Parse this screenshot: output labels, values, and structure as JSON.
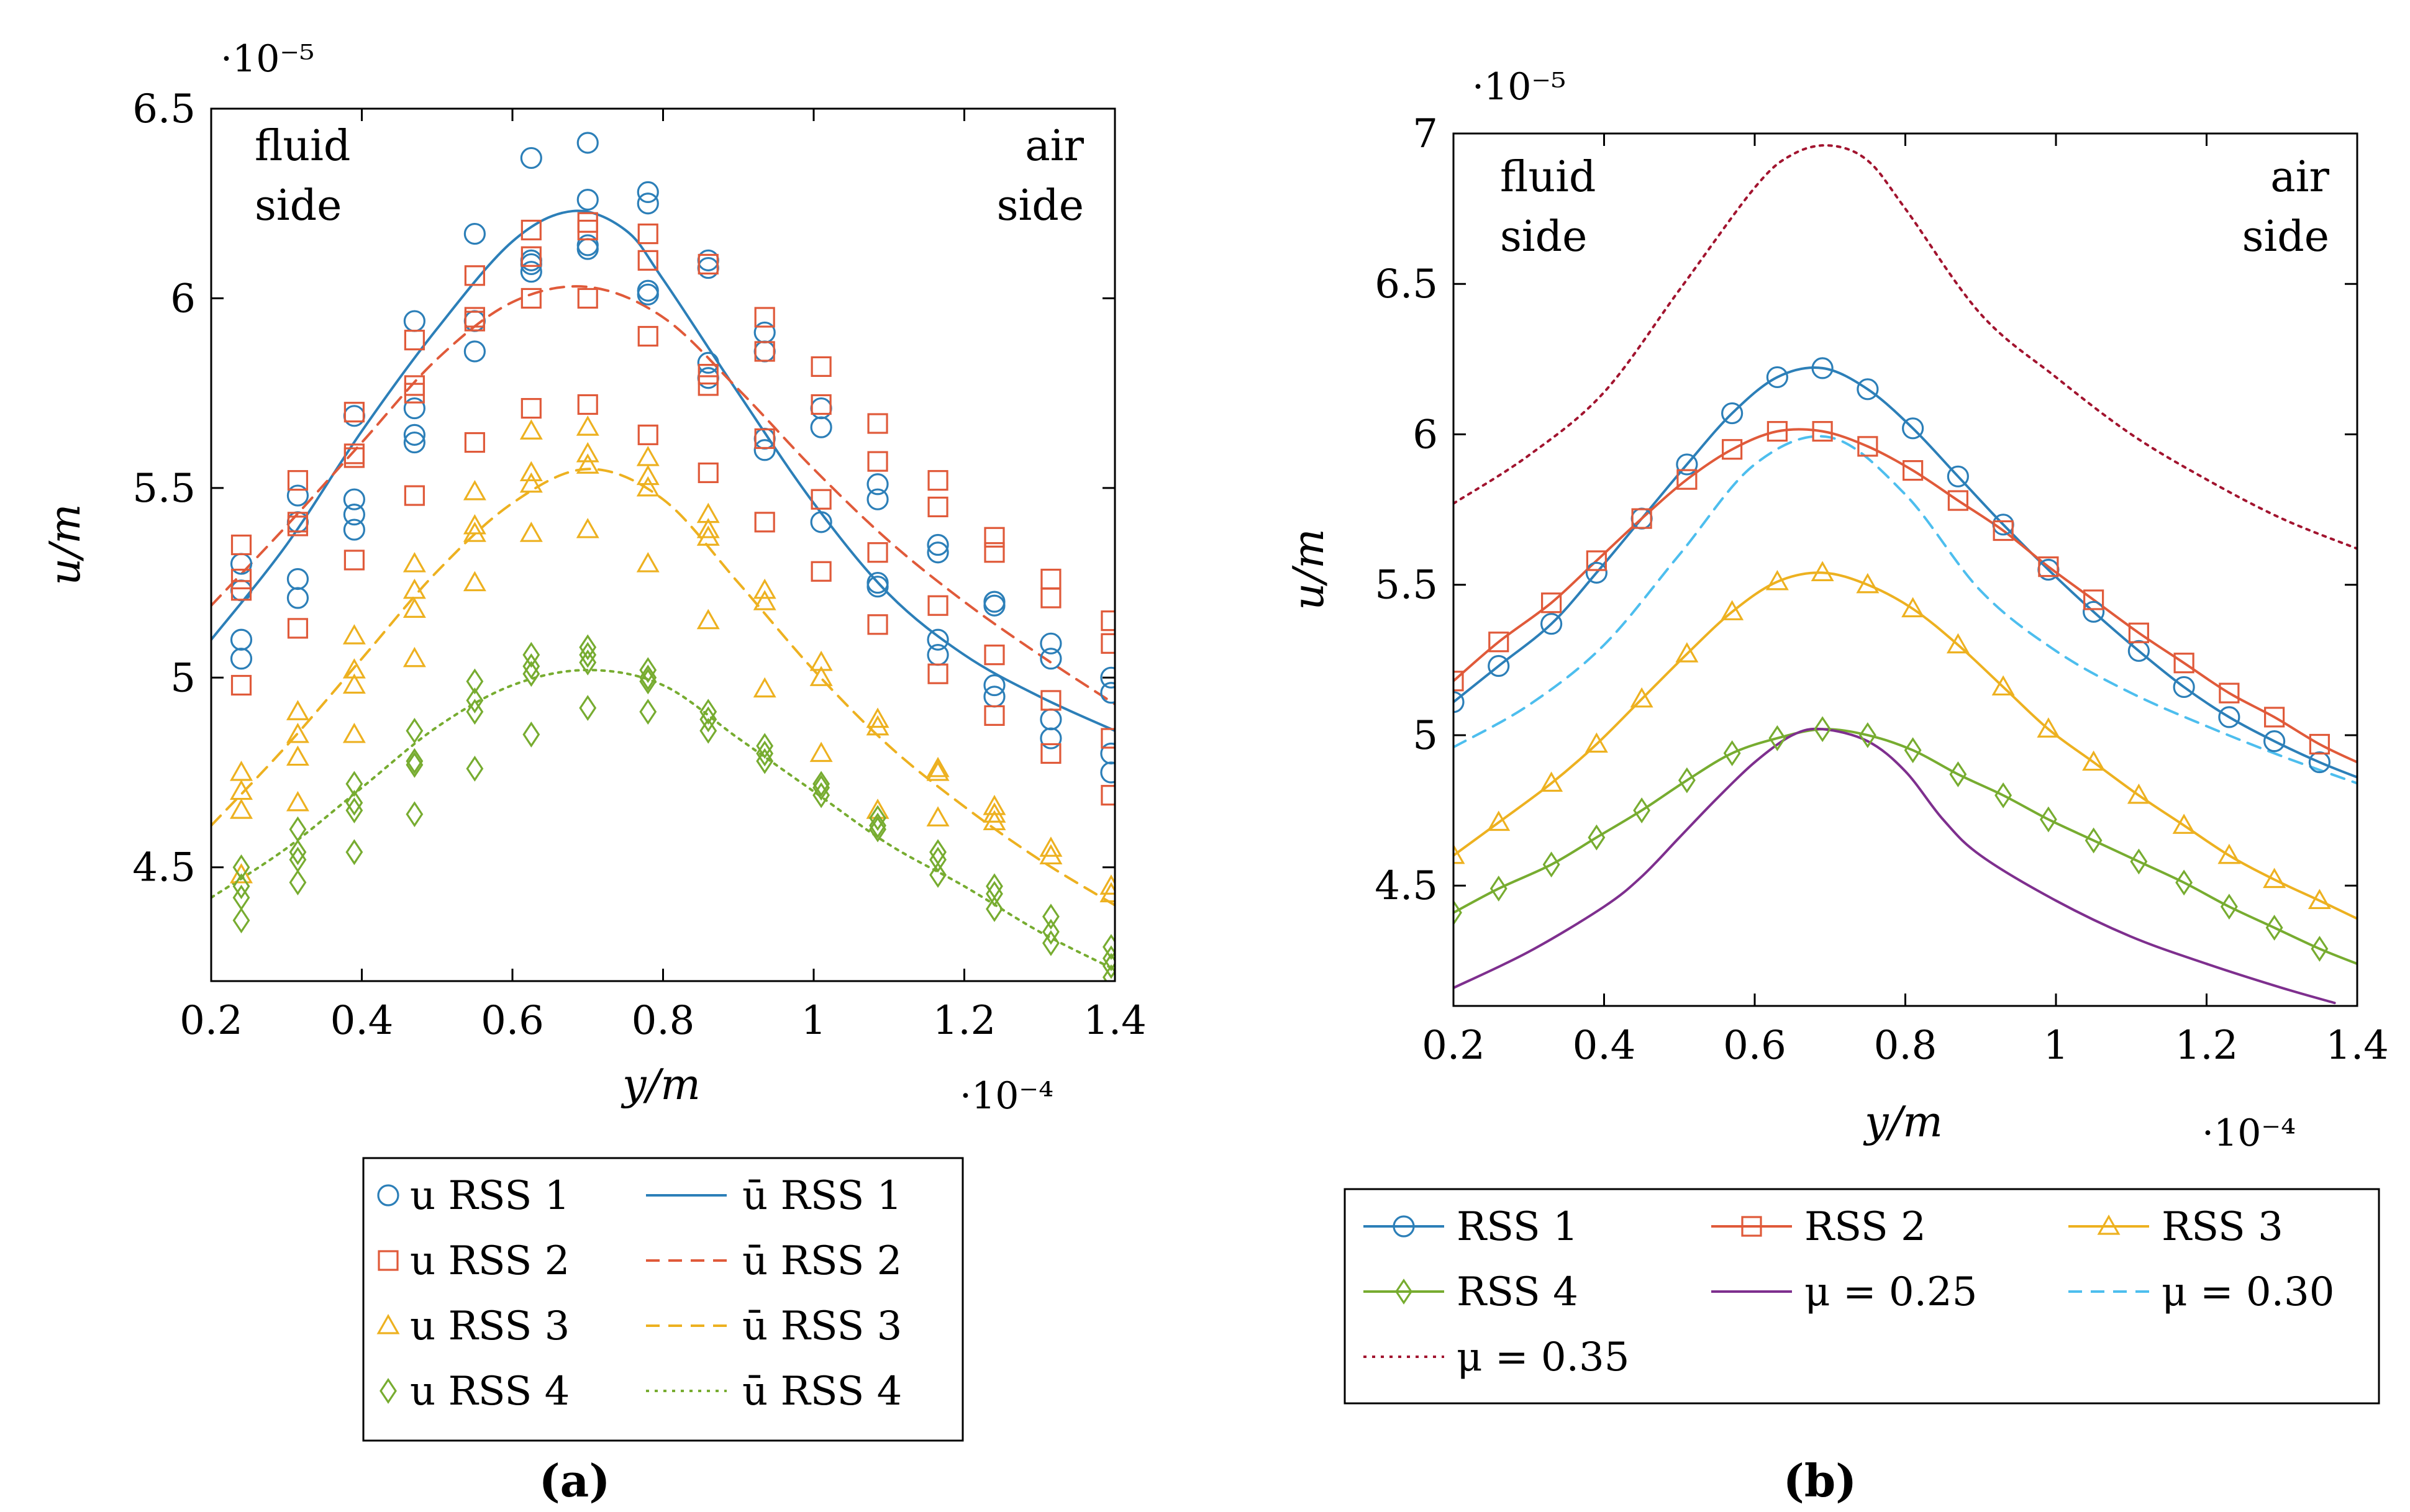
{
  "colors": {
    "rss1": "#2c7fb8",
    "rss2": "#e05a3a",
    "rss3": "#edb120",
    "rss4": "#77ac30",
    "mu025": "#7e2f8e",
    "mu030": "#4dbeee",
    "mu035": "#a2142f"
  },
  "panels": {
    "a": {
      "caption": "(a)",
      "exponent_x": "·10⁻⁴",
      "exponent_y": "·10⁻⁵",
      "xlabel": "y/m",
      "ylabel": "u/m",
      "annotation_left": [
        "fluid",
        "side"
      ],
      "annotation_right": [
        "air",
        "side"
      ],
      "xticks": [
        "0.2",
        "0.4",
        "0.6",
        "0.8",
        "1",
        "1.2",
        "1.4"
      ],
      "yticks": [
        "4.5",
        "5",
        "5.5",
        "6",
        "6.5"
      ],
      "legend": [
        {
          "label": "u RSS 1",
          "kind": "marker",
          "series": "rss1"
        },
        {
          "label": "ū RSS 1",
          "kind": "line",
          "series": "rss1"
        },
        {
          "label": "u RSS 2",
          "kind": "marker",
          "series": "rss2"
        },
        {
          "label": "ū RSS 2",
          "kind": "line",
          "series": "rss2"
        },
        {
          "label": "u RSS 3",
          "kind": "marker",
          "series": "rss3"
        },
        {
          "label": "ū RSS 3",
          "kind": "line",
          "series": "rss3"
        },
        {
          "label": "u RSS 4",
          "kind": "marker",
          "series": "rss4"
        },
        {
          "label": "ū RSS 4",
          "kind": "line",
          "series": "rss4"
        }
      ]
    },
    "b": {
      "caption": "(b)",
      "exponent_x": "·10⁻⁴",
      "exponent_y": "·10⁻⁵",
      "xlabel": "y/m",
      "ylabel": "u/m",
      "annotation_left": [
        "fluid",
        "side"
      ],
      "annotation_right": [
        "air",
        "side"
      ],
      "xticks": [
        "0.2",
        "0.4",
        "0.6",
        "0.8",
        "1",
        "1.2",
        "1.4"
      ],
      "yticks": [
        "4.5",
        "5",
        "5.5",
        "6",
        "6.5",
        "7"
      ],
      "legend": [
        {
          "label": "RSS 1",
          "series": "rss1"
        },
        {
          "label": "RSS 2",
          "series": "rss2"
        },
        {
          "label": "RSS 3",
          "series": "rss3"
        },
        {
          "label": "RSS 4",
          "series": "rss4"
        },
        {
          "label": "μ = 0.25",
          "series": "mu025"
        },
        {
          "label": "μ = 0.30",
          "series": "mu030"
        },
        {
          "label": "μ = 0.35",
          "series": "mu035"
        }
      ]
    }
  },
  "chart_data": [
    {
      "type": "scatter",
      "panel": "a",
      "title": "",
      "xlabel": "y/m (·10⁻⁴)",
      "ylabel": "u/m (·10⁻⁵)",
      "xlim": [
        0.2,
        1.4
      ],
      "ylim": [
        4.2,
        6.5
      ],
      "x_ticks": [
        0.2,
        0.4,
        0.6,
        0.8,
        1.0,
        1.2,
        1.4
      ],
      "y_ticks": [
        4.5,
        5.0,
        5.5,
        6.0,
        6.5
      ],
      "x": [
        0.24,
        0.315,
        0.39,
        0.47,
        0.55,
        0.625,
        0.7,
        0.78,
        0.86,
        0.935,
        1.01,
        1.085,
        1.165,
        1.24,
        1.315,
        1.395
      ],
      "scatter_series": [
        {
          "name": "u RSS 1",
          "color_key": "rss1",
          "marker": "circle",
          "values": [
            [
              5.05,
              5.1,
              5.23,
              5.3
            ],
            [
              5.21,
              5.26,
              5.41,
              5.48
            ],
            [
              5.39,
              5.43,
              5.47,
              5.69
            ],
            [
              5.62,
              5.64,
              5.71,
              5.94
            ],
            [
              5.86,
              5.94,
              6.17
            ],
            [
              6.07,
              6.09,
              6.1,
              6.37
            ],
            [
              6.13,
              6.14,
              6.26,
              6.41
            ],
            [
              6.01,
              6.02,
              6.25,
              6.28
            ],
            [
              5.79,
              5.83,
              6.08,
              6.1
            ],
            [
              5.6,
              5.63,
              5.86,
              5.91
            ],
            [
              5.41,
              5.66,
              5.71
            ],
            [
              5.24,
              5.25,
              5.47,
              5.51
            ],
            [
              5.06,
              5.1,
              5.33,
              5.35
            ],
            [
              4.95,
              4.98,
              5.19,
              5.2
            ],
            [
              4.84,
              4.89,
              5.05,
              5.09
            ],
            [
              4.75,
              4.8,
              4.96,
              5.0
            ]
          ]
        },
        {
          "name": "u RSS 2",
          "color_key": "rss2",
          "marker": "square",
          "values": [
            [
              4.98,
              5.23,
              5.26,
              5.35
            ],
            [
              5.13,
              5.4,
              5.41,
              5.52
            ],
            [
              5.31,
              5.58,
              5.59,
              5.7
            ],
            [
              5.48,
              5.75,
              5.77,
              5.89
            ],
            [
              5.62,
              5.94,
              5.95,
              6.06
            ],
            [
              5.71,
              6.0,
              6.11,
              6.18
            ],
            [
              5.72,
              6.0,
              6.18,
              6.2
            ],
            [
              5.64,
              5.9,
              6.1,
              6.17
            ],
            [
              5.54,
              5.77,
              5.8,
              6.09
            ],
            [
              5.41,
              5.63,
              5.86,
              5.95
            ],
            [
              5.28,
              5.47,
              5.72,
              5.82
            ],
            [
              5.14,
              5.33,
              5.57,
              5.67
            ],
            [
              5.01,
              5.19,
              5.45,
              5.52
            ],
            [
              4.9,
              5.06,
              5.33,
              5.37
            ],
            [
              4.8,
              4.94,
              5.21,
              5.26
            ],
            [
              4.69,
              4.84,
              5.09,
              5.15
            ]
          ]
        },
        {
          "name": "u RSS 3",
          "color_key": "rss3",
          "marker": "triangle",
          "values": [
            [
              4.48,
              4.65,
              4.7,
              4.75
            ],
            [
              4.67,
              4.79,
              4.85,
              4.91
            ],
            [
              4.85,
              4.98,
              5.02,
              5.11
            ],
            [
              5.05,
              5.18,
              5.23,
              5.3
            ],
            [
              5.25,
              5.38,
              5.4,
              5.49
            ],
            [
              5.38,
              5.51,
              5.54,
              5.65
            ],
            [
              5.39,
              5.56,
              5.59,
              5.66
            ],
            [
              5.3,
              5.5,
              5.53,
              5.58
            ],
            [
              5.15,
              5.37,
              5.39,
              5.43
            ],
            [
              4.97,
              5.2,
              5.23
            ],
            [
              4.8,
              5.0,
              5.04
            ],
            [
              4.65,
              4.87,
              4.89
            ],
            [
              4.63,
              4.75,
              4.76
            ],
            [
              4.62,
              4.64,
              4.66
            ],
            [
              4.53,
              4.55
            ],
            [
              4.43,
              4.45
            ]
          ]
        },
        {
          "name": "u RSS 4",
          "color_key": "rss4",
          "marker": "diamond",
          "values": [
            [
              4.36,
              4.42,
              4.45,
              4.5
            ],
            [
              4.46,
              4.52,
              4.54,
              4.6
            ],
            [
              4.54,
              4.65,
              4.67,
              4.72
            ],
            [
              4.64,
              4.77,
              4.78,
              4.86
            ],
            [
              4.76,
              4.91,
              4.94,
              4.99
            ],
            [
              4.85,
              5.01,
              5.03,
              5.06
            ],
            [
              4.92,
              5.04,
              5.06,
              5.08
            ],
            [
              4.91,
              4.99,
              5.0,
              5.02
            ],
            [
              4.86,
              4.89,
              4.91
            ],
            [
              4.78,
              4.8,
              4.82
            ],
            [
              4.69,
              4.71,
              4.72
            ],
            [
              4.6,
              4.61,
              4.63
            ],
            [
              4.48,
              4.52,
              4.54
            ],
            [
              4.39,
              4.43,
              4.45
            ],
            [
              4.3,
              4.33,
              4.37
            ],
            [
              4.21,
              4.24,
              4.26,
              4.29
            ]
          ]
        }
      ],
      "line_series": [
        {
          "name": "ū RSS 1",
          "color_key": "rss1",
          "dash": "solid",
          "x": [
            0.2,
            0.3,
            0.4,
            0.5,
            0.6,
            0.68,
            0.75,
            0.8,
            0.9,
            1.0,
            1.1,
            1.2,
            1.3,
            1.4
          ],
          "values": [
            5.1,
            5.35,
            5.65,
            5.92,
            6.15,
            6.23,
            6.18,
            6.05,
            5.75,
            5.46,
            5.22,
            5.06,
            4.95,
            4.86
          ]
        },
        {
          "name": "ū RSS 2",
          "color_key": "rss2",
          "dash": "dashed",
          "x": [
            0.2,
            0.3,
            0.4,
            0.5,
            0.6,
            0.7,
            0.8,
            0.9,
            1.0,
            1.1,
            1.2,
            1.3,
            1.4
          ],
          "values": [
            5.19,
            5.4,
            5.62,
            5.84,
            5.99,
            6.03,
            5.95,
            5.76,
            5.55,
            5.36,
            5.2,
            5.06,
            4.93
          ]
        },
        {
          "name": "ū RSS 3",
          "color_key": "rss3",
          "dash": "dashed",
          "x": [
            0.2,
            0.3,
            0.4,
            0.5,
            0.6,
            0.7,
            0.8,
            0.9,
            1.0,
            1.1,
            1.2,
            1.3,
            1.4
          ],
          "values": [
            4.61,
            4.82,
            5.05,
            5.28,
            5.46,
            5.55,
            5.47,
            5.25,
            5.02,
            4.82,
            4.66,
            4.52,
            4.4
          ]
        },
        {
          "name": "ū RSS 4",
          "color_key": "rss4",
          "dash": "dotted",
          "x": [
            0.2,
            0.3,
            0.4,
            0.5,
            0.6,
            0.7,
            0.8,
            0.9,
            1.0,
            1.1,
            1.2,
            1.3,
            1.4
          ],
          "values": [
            4.42,
            4.55,
            4.71,
            4.87,
            4.98,
            5.02,
            4.98,
            4.84,
            4.7,
            4.56,
            4.45,
            4.33,
            4.23
          ]
        }
      ]
    },
    {
      "type": "line",
      "panel": "b",
      "title": "",
      "xlabel": "y/m (·10⁻⁴)",
      "ylabel": "u/m (·10⁻⁵)",
      "xlim": [
        0.2,
        1.4
      ],
      "ylim": [
        4.1,
        7.0
      ],
      "x_ticks": [
        0.2,
        0.4,
        0.6,
        0.8,
        1.0,
        1.2,
        1.4
      ],
      "y_ticks": [
        4.5,
        5.0,
        5.5,
        6.0,
        6.5,
        7.0
      ],
      "series": [
        {
          "name": "RSS 1",
          "color_key": "rss1",
          "marker": "circle",
          "dash": "solid",
          "x": [
            0.2,
            0.26,
            0.33,
            0.39,
            0.45,
            0.51,
            0.57,
            0.63,
            0.69,
            0.75,
            0.81,
            0.87,
            0.93,
            0.99,
            1.05,
            1.11,
            1.17,
            1.23,
            1.29,
            1.35,
            1.4
          ],
          "values": [
            5.11,
            5.23,
            5.37,
            5.54,
            5.72,
            5.9,
            6.07,
            6.19,
            6.22,
            6.15,
            6.02,
            5.86,
            5.7,
            5.55,
            5.41,
            5.28,
            5.16,
            5.06,
            4.98,
            4.91,
            4.86
          ],
          "marked": 20
        },
        {
          "name": "RSS 2",
          "color_key": "rss2",
          "marker": "square",
          "dash": "solid",
          "x": [
            0.2,
            0.26,
            0.33,
            0.39,
            0.45,
            0.51,
            0.57,
            0.63,
            0.69,
            0.75,
            0.81,
            0.87,
            0.93,
            0.99,
            1.05,
            1.11,
            1.17,
            1.23,
            1.29,
            1.35,
            1.4
          ],
          "values": [
            5.18,
            5.31,
            5.44,
            5.58,
            5.72,
            5.85,
            5.95,
            6.01,
            6.01,
            5.96,
            5.88,
            5.78,
            5.68,
            5.56,
            5.45,
            5.34,
            5.24,
            5.14,
            5.06,
            4.97,
            4.91
          ],
          "marked": 20
        },
        {
          "name": "RSS 3",
          "color_key": "rss3",
          "marker": "triangle",
          "dash": "solid",
          "x": [
            0.2,
            0.26,
            0.33,
            0.39,
            0.45,
            0.51,
            0.57,
            0.63,
            0.69,
            0.75,
            0.81,
            0.87,
            0.93,
            0.99,
            1.05,
            1.11,
            1.17,
            1.23,
            1.29,
            1.35,
            1.4
          ],
          "values": [
            4.6,
            4.71,
            4.84,
            4.97,
            5.12,
            5.27,
            5.41,
            5.51,
            5.54,
            5.5,
            5.42,
            5.3,
            5.16,
            5.02,
            4.91,
            4.8,
            4.7,
            4.6,
            4.52,
            4.45,
            4.39
          ],
          "marked": 20
        },
        {
          "name": "RSS 4",
          "color_key": "rss4",
          "marker": "diamond",
          "dash": "solid",
          "x": [
            0.2,
            0.26,
            0.33,
            0.39,
            0.45,
            0.51,
            0.57,
            0.63,
            0.69,
            0.75,
            0.81,
            0.87,
            0.93,
            0.99,
            1.05,
            1.11,
            1.17,
            1.23,
            1.29,
            1.35,
            1.4
          ],
          "values": [
            4.41,
            4.49,
            4.57,
            4.66,
            4.75,
            4.85,
            4.94,
            4.99,
            5.02,
            5.0,
            4.95,
            4.87,
            4.8,
            4.72,
            4.65,
            4.58,
            4.51,
            4.43,
            4.36,
            4.29,
            4.24
          ],
          "marked": 20
        },
        {
          "name": "μ = 0.25",
          "color_key": "mu025",
          "marker": "none",
          "dash": "solid",
          "x": [
            0.2,
            0.3,
            0.4,
            0.45,
            0.5,
            0.55,
            0.6,
            0.65,
            0.69,
            0.75,
            0.8,
            0.85,
            0.9,
            1.0,
            1.1,
            1.2,
            1.3,
            1.37
          ],
          "values": [
            4.16,
            4.28,
            4.43,
            4.53,
            4.66,
            4.79,
            4.91,
            5.0,
            5.02,
            4.98,
            4.88,
            4.72,
            4.6,
            4.45,
            4.33,
            4.24,
            4.16,
            4.11
          ]
        },
        {
          "name": "μ = 0.30",
          "color_key": "mu030",
          "marker": "none",
          "dash": "dashed",
          "x": [
            0.2,
            0.3,
            0.4,
            0.5,
            0.6,
            0.7,
            0.8,
            0.9,
            1.0,
            1.1,
            1.2,
            1.3,
            1.4
          ],
          "values": [
            4.96,
            5.1,
            5.3,
            5.6,
            5.9,
            5.99,
            5.8,
            5.48,
            5.28,
            5.14,
            5.03,
            4.93,
            4.84
          ]
        },
        {
          "name": "μ = 0.35",
          "color_key": "mu035",
          "marker": "none",
          "dash": "dotted",
          "x": [
            0.2,
            0.3,
            0.4,
            0.5,
            0.6,
            0.65,
            0.7,
            0.75,
            0.8,
            0.9,
            1.0,
            1.1,
            1.2,
            1.3,
            1.4
          ],
          "values": [
            5.77,
            5.93,
            6.14,
            6.48,
            6.82,
            6.93,
            6.96,
            6.91,
            6.75,
            6.4,
            6.19,
            6.0,
            5.85,
            5.72,
            5.62
          ]
        }
      ]
    }
  ]
}
